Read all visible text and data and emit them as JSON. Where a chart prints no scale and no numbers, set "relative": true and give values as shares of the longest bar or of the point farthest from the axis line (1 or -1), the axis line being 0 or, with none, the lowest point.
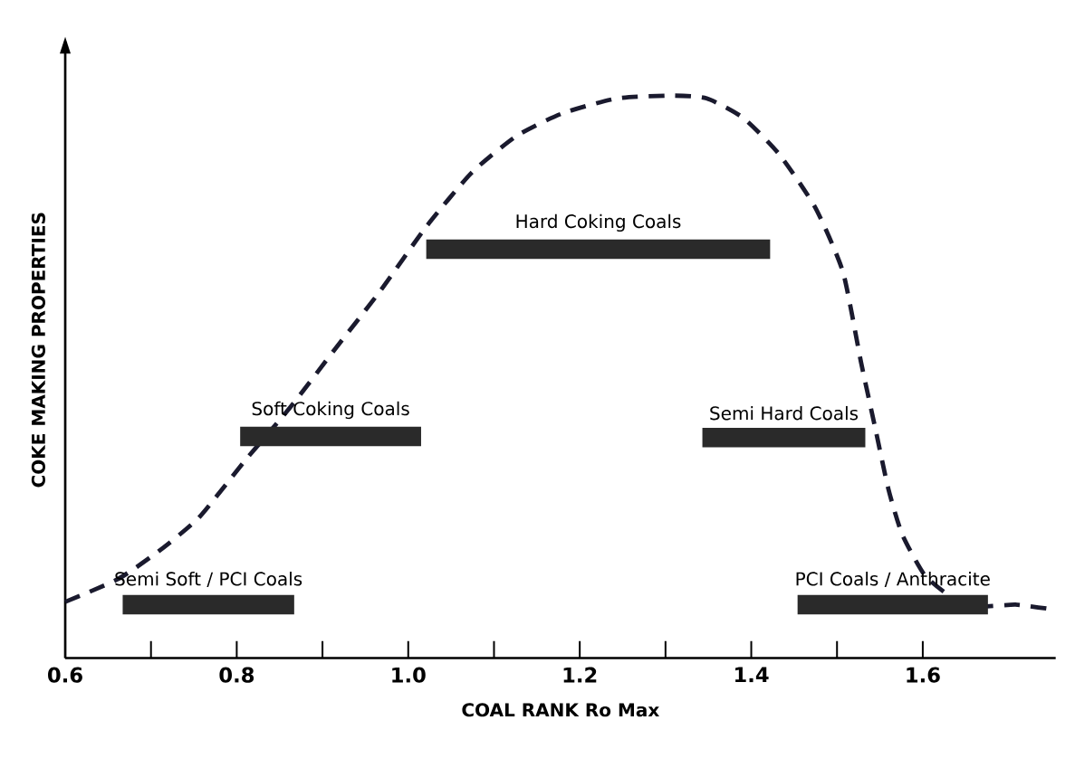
{
  "chart_data": {
    "type": "line",
    "relative": true,
    "xlabel": "COAL RANK Ro Max",
    "ylabel": "COKE MAKING PROPERTIES",
    "xlim": [
      0.6,
      1.755
    ],
    "xticks": [
      {
        "value": 0.6,
        "label": "0.6"
      },
      {
        "value": 0.8,
        "label": "0.8"
      },
      {
        "value": 1.0,
        "label": "1.0"
      },
      {
        "value": 1.2,
        "label": "1.2"
      },
      {
        "value": 1.4,
        "label": "1.4"
      },
      {
        "value": 1.6,
        "label": "1.6"
      }
    ],
    "marker": "none",
    "series": [
      {
        "line_style": "dashed",
        "color": "#1a1a2e",
        "x": [
          0.6,
          0.661,
          0.709,
          0.756,
          0.809,
          0.862,
          0.915,
          0.968,
          1.021,
          1.074,
          1.126,
          1.179,
          1.243,
          1.306,
          1.348,
          1.391,
          1.433,
          1.475,
          1.507,
          1.528,
          1.544,
          1.56,
          1.576,
          1.602,
          1.634,
          1.666,
          1.708,
          1.745
        ],
        "values": [
          0.1,
          0.14,
          0.19,
          0.25,
          0.35,
          0.445,
          0.55,
          0.654,
          0.767,
          0.863,
          0.928,
          0.968,
          0.995,
          1.0,
          0.995,
          0.96,
          0.895,
          0.8,
          0.686,
          0.526,
          0.413,
          0.3,
          0.22,
          0.148,
          0.108,
          0.092,
          0.095,
          0.088
        ]
      },
      {
        "type": "line",
        "line_style": "solid",
        "name": "Hard Coking Coals",
        "color": "#2a2a2a",
        "x": [
          1.021,
          1.422
        ],
        "values": [
          0.727,
          0.727
        ]
      },
      {
        "type": "line",
        "line_style": "solid",
        "name": "Soft Coking Coals",
        "color": "#2a2a2a",
        "x": [
          0.804,
          1.015
        ],
        "values": [
          0.394,
          0.394
        ]
      },
      {
        "type": "line",
        "line_style": "solid",
        "name": "Semi Hard Coals",
        "color": "#2a2a2a",
        "x": [
          1.343,
          1.533
        ],
        "values": [
          0.392,
          0.392
        ]
      },
      {
        "type": "line",
        "line_style": "solid",
        "name": "Semi Soft / PCI Coals",
        "color": "#2a2a2a",
        "x": [
          0.667,
          0.867
        ],
        "values": [
          0.095,
          0.095
        ]
      },
      {
        "type": "line",
        "line_style": "solid",
        "name": "PCI Coals / Anthracite",
        "color": "#2a2a2a",
        "x": [
          1.454,
          1.676
        ],
        "values": [
          0.095,
          0.095
        ]
      }
    ]
  }
}
